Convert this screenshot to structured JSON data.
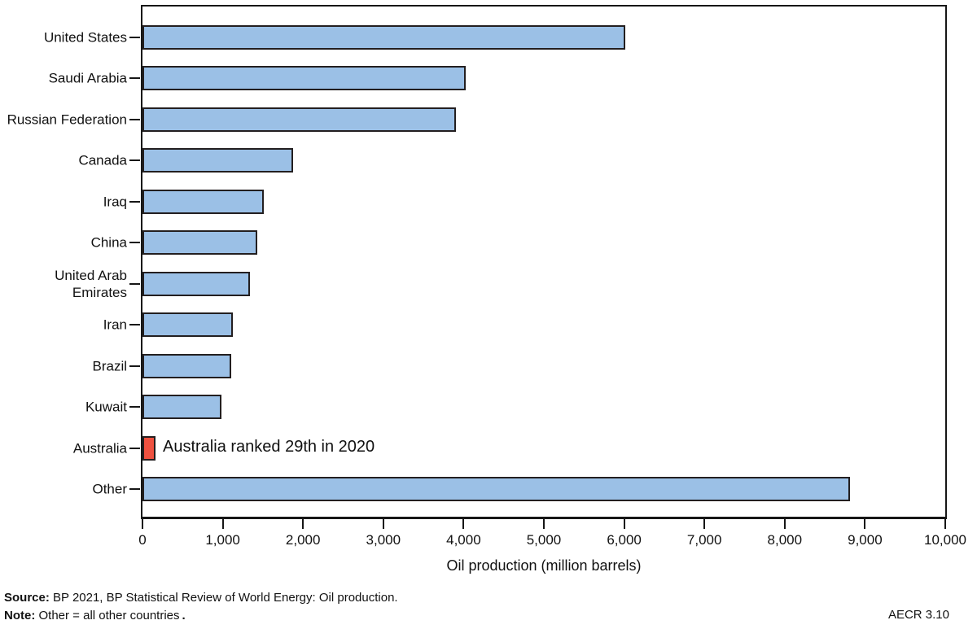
{
  "chart_data": {
    "type": "bar",
    "orientation": "horizontal",
    "categories": [
      "United States",
      "Saudi Arabia",
      "Russian Federation",
      "Canada",
      "Iraq",
      "China",
      "United Arab\nEmirates",
      "Iran",
      "Brazil",
      "Kuwait",
      "Australia",
      "Other"
    ],
    "values": [
      6010,
      4030,
      3900,
      1880,
      1510,
      1430,
      1340,
      1130,
      1110,
      980,
      160,
      8810
    ],
    "title": "",
    "xlabel": "Oil production (million barrels)",
    "ylabel": "",
    "xlim": [
      0,
      10000
    ],
    "x_ticks": [
      0,
      1000,
      2000,
      3000,
      4000,
      5000,
      6000,
      7000,
      8000,
      9000,
      10000
    ],
    "x_tick_labels": [
      "0",
      "1,000",
      "2,000",
      "3,000",
      "4,000",
      "5,000",
      "6,000",
      "7,000",
      "8,000",
      "9,000",
      "10,000"
    ],
    "grid": false,
    "legend": "none",
    "bar_color": "#9bc0e6",
    "bar_border_color": "#231f20",
    "highlight_index": 10,
    "highlight_color": "#ee5140",
    "annotation": {
      "text": "Australia ranked 29th in 2020",
      "target": "Australia"
    }
  },
  "footer": {
    "source_label": "Source:",
    "source_text": "BP 2021, BP Statistical Review of World Energy: Oil production.",
    "note_label": "Note:",
    "note_text": "Other = all other countries",
    "note_period": ".",
    "figure_code": "AECR 3.10"
  }
}
